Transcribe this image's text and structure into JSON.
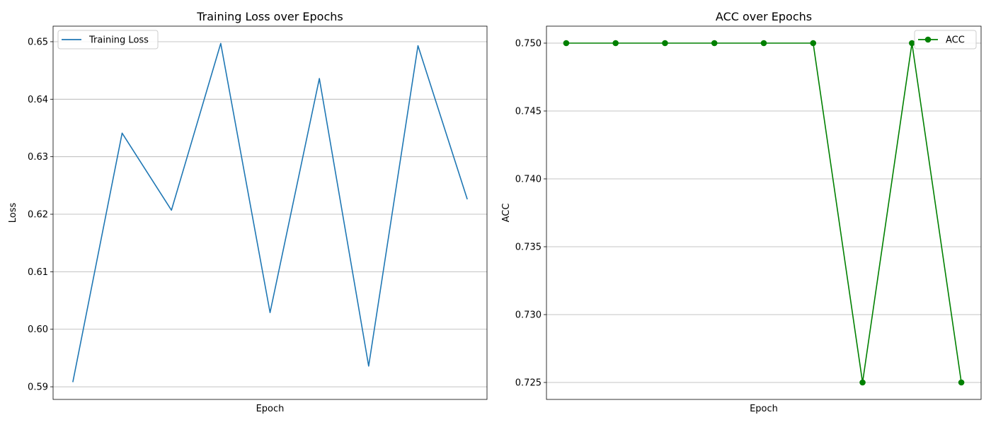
{
  "chart_data": [
    {
      "type": "line",
      "title": "Training Loss over Epochs",
      "xlabel": "Epoch",
      "ylabel": "Loss",
      "x": [
        1,
        2,
        3,
        4,
        5,
        6,
        7,
        8,
        9
      ],
      "series": [
        {
          "name": "Training Loss",
          "color": "#1f77b4",
          "marker": false,
          "values": [
            0.5908,
            0.6341,
            0.6207,
            0.6497,
            0.6029,
            0.6436,
            0.5936,
            0.6493,
            0.6226
          ]
        }
      ],
      "ylim": [
        0.5878,
        0.6527
      ],
      "yticks": [
        0.59,
        0.6,
        0.61,
        0.62,
        0.63,
        0.64,
        0.65
      ],
      "ytick_labels": [
        "0.59",
        "0.60",
        "0.61",
        "0.62",
        "0.63",
        "0.64",
        "0.65"
      ],
      "show_xticks": false,
      "grid": "y",
      "legend_loc": "upper left"
    },
    {
      "type": "line",
      "title": "ACC over Epochs",
      "xlabel": "Epoch",
      "ylabel": "ACC",
      "x": [
        1,
        2,
        3,
        4,
        5,
        6,
        7,
        8,
        9
      ],
      "series": [
        {
          "name": "ACC",
          "color": "#008000",
          "marker": true,
          "values": [
            0.75,
            0.75,
            0.75,
            0.75,
            0.75,
            0.75,
            0.725,
            0.75,
            0.725
          ]
        }
      ],
      "ylim": [
        0.72375,
        0.75125
      ],
      "yticks": [
        0.725,
        0.73,
        0.735,
        0.74,
        0.745,
        0.75
      ],
      "ytick_labels": [
        "0.725",
        "0.730",
        "0.735",
        "0.740",
        "0.745",
        "0.750"
      ],
      "show_xticks": false,
      "grid": "y",
      "legend_loc": "upper right"
    }
  ]
}
